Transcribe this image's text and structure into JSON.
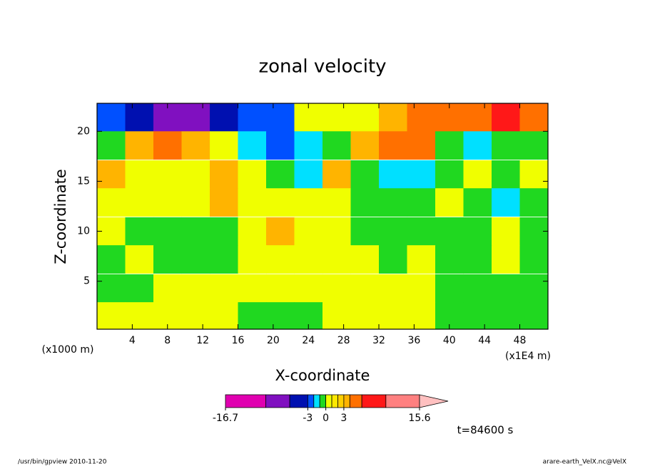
{
  "chart_data": {
    "type": "contour",
    "title": "zonal velocity",
    "x_label": "X-coordinate",
    "y_label": "Z-coordinate",
    "x_unit": "(x1E4 m)",
    "y_unit": "(x1000 m)",
    "time_label": "t=84600 s",
    "footer_left": "/usr/bin/gpview  2010-11-20",
    "footer_right": "arare-earth_VelX.nc@VelX",
    "xlim": [
      0,
      51.2
    ],
    "ylim": [
      0.2,
      22.8
    ],
    "xticks": [
      4,
      8,
      12,
      16,
      20,
      24,
      28,
      32,
      36,
      40,
      44,
      48
    ],
    "yticks": [
      5,
      10,
      15,
      20
    ],
    "x": [
      1.6,
      4.8,
      8,
      11.2,
      14.4,
      17.6,
      20.8,
      24,
      27.2,
      30.4,
      33.6,
      36.8,
      40,
      43.2,
      46.4,
      49.6
    ],
    "z": [
      21.4,
      18.6,
      15.7,
      12.9,
      10,
      7.2,
      4.3,
      1.5
    ],
    "values": [
      [
        -2.5,
        -4,
        -8,
        -8,
        -4,
        -2.5,
        -2.5,
        0.5,
        0.5,
        0.5,
        3.5,
        5,
        5,
        5,
        7,
        5
      ],
      [
        -0.5,
        3.5,
        4.5,
        3.5,
        0.5,
        -1.5,
        -2.5,
        -1.5,
        -0.5,
        3.5,
        4.5,
        5,
        -0.5,
        -1.5,
        -0.5,
        -0.5
      ],
      [
        3.5,
        0.5,
        0.5,
        0.5,
        3.5,
        0.5,
        -0.5,
        -1.5,
        3.5,
        -0.5,
        -1.5,
        -1.5,
        -0.5,
        0.5,
        -0.5,
        0.5
      ],
      [
        0.5,
        0.5,
        0.5,
        0.5,
        3.5,
        0.5,
        0.5,
        0.5,
        0.5,
        -0.5,
        -0.5,
        -0.5,
        0.5,
        -0.5,
        -1.5,
        -0.5
      ],
      [
        0.5,
        -0.5,
        -0.5,
        -0.5,
        -0.5,
        0.5,
        3.5,
        0.5,
        0.5,
        -0.5,
        -0.5,
        -0.5,
        -0.5,
        -0.5,
        0.5,
        -0.5
      ],
      [
        -0.5,
        0.5,
        -0.5,
        -0.5,
        -0.5,
        0.5,
        0.5,
        0.5,
        0.5,
        0.5,
        -0.5,
        0.5,
        -0.5,
        -0.5,
        0.5,
        -0.5
      ],
      [
        -0.5,
        -0.5,
        0.5,
        0.5,
        0.5,
        0.5,
        0.5,
        0.5,
        0.5,
        0.5,
        0.5,
        0.5,
        -0.5,
        -0.5,
        -0.5,
        -0.5
      ],
      [
        0.5,
        0.5,
        0.5,
        0.5,
        0.5,
        -0.5,
        -0.5,
        -0.5,
        0.5,
        0.5,
        0.5,
        0.5,
        -0.5,
        -0.5,
        -0.5,
        -0.5
      ]
    ],
    "colorbar": {
      "levels": [
        -16.7,
        -10,
        -6,
        -3,
        -2,
        -1,
        0,
        1,
        2,
        3,
        4,
        6,
        10,
        15.6
      ],
      "colors": [
        "#e000b0",
        "#8010c0",
        "#0010b0",
        "#0050ff",
        "#00e0ff",
        "#20d820",
        "#f0ff00",
        "#ffe800",
        "#ffd000",
        "#ffb400",
        "#ff7000",
        "#ff1818",
        "#ff8080",
        "#ffc0c0"
      ],
      "ticks": [
        -16.7,
        -3,
        0,
        3,
        15.6
      ]
    }
  }
}
